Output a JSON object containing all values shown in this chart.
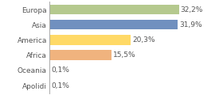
{
  "categories": [
    "Europa",
    "Asia",
    "America",
    "Africa",
    "Oceania",
    "Apolidi"
  ],
  "values": [
    32.2,
    31.9,
    20.3,
    15.5,
    0.1,
    0.1
  ],
  "labels": [
    "32,2%",
    "31,9%",
    "20,3%",
    "15,5%",
    "0,1%",
    "0,1%"
  ],
  "bar_colors": [
    "#b5c98e",
    "#7090bf",
    "#ffd966",
    "#f0b37e",
    "#ffffff",
    "#ffffff"
  ],
  "bar_edgecolors": [
    "#b5c98e",
    "#7090bf",
    "#ffd966",
    "#f0b37e",
    "#ffffff",
    "#ffffff"
  ],
  "background_color": "#ffffff",
  "text_color": "#555555",
  "xlim": [
    0,
    42
  ],
  "figsize": [
    2.8,
    1.2
  ],
  "dpi": 100
}
